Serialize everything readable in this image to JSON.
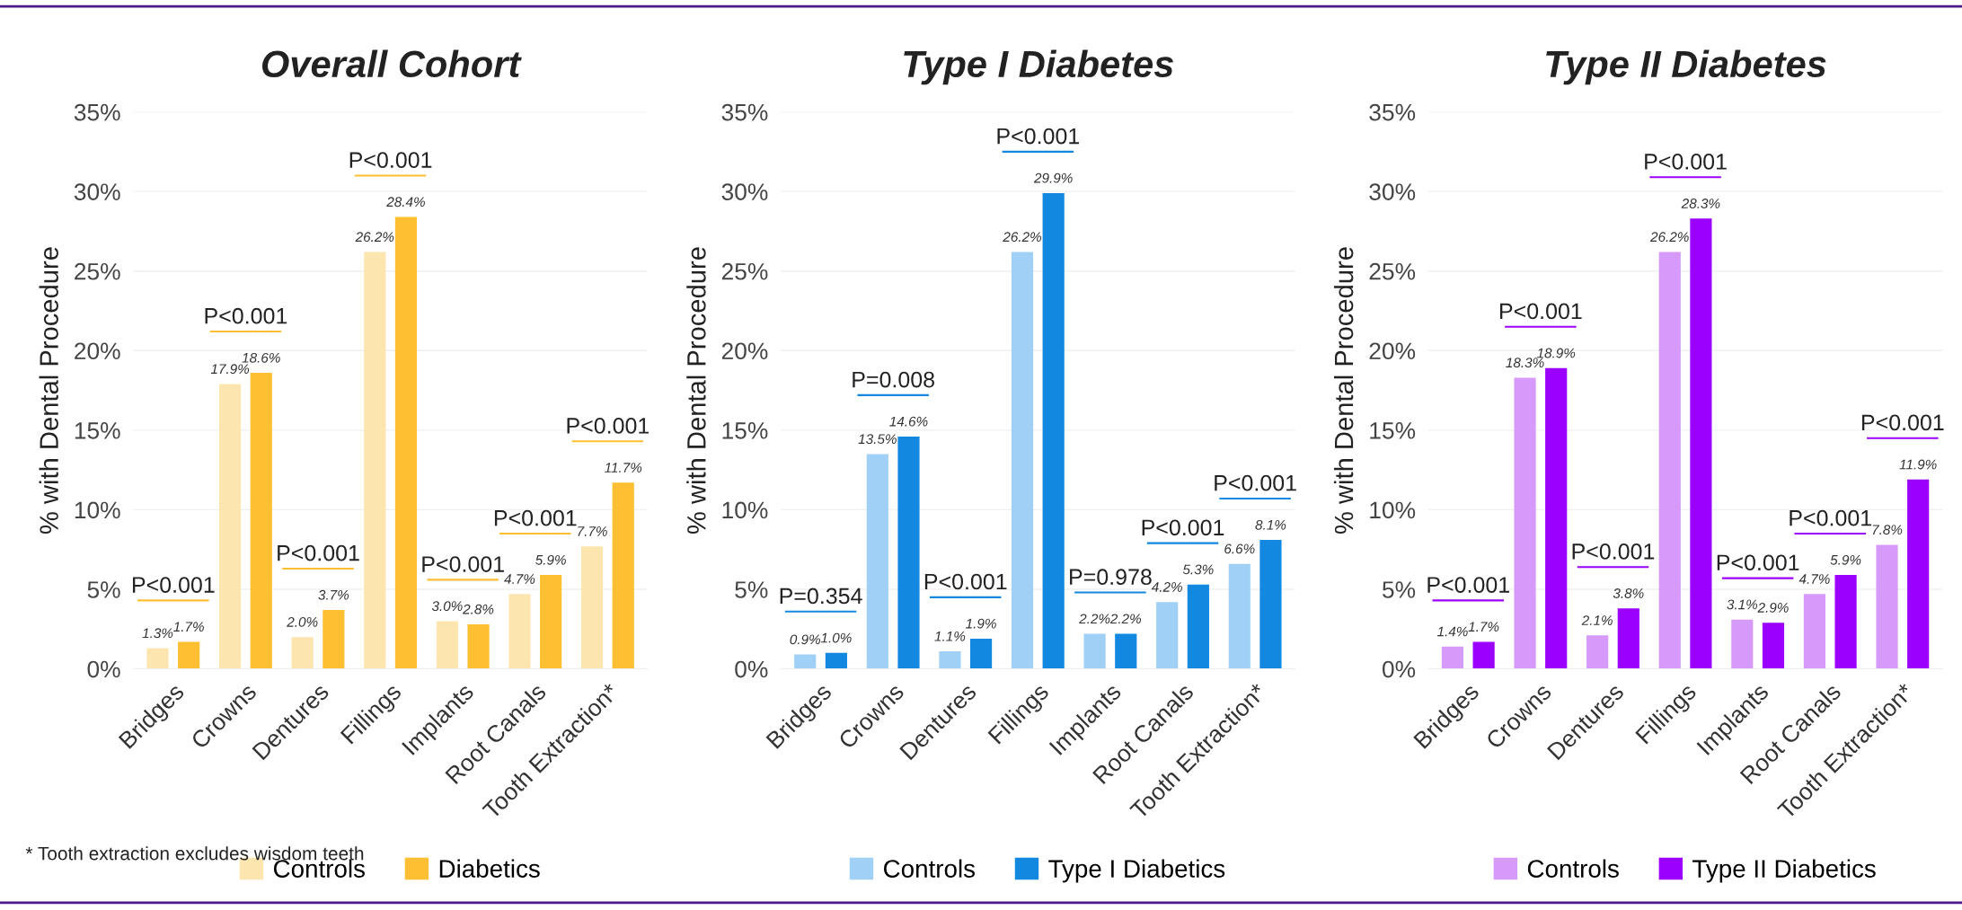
{
  "chart_data": [
    {
      "type": "bar",
      "title": "Overall Cohort",
      "ylabel": "% with Dental Procedure",
      "categories": [
        "Bridges",
        "Crowns",
        "Dentures",
        "Fillings",
        "Implants",
        "Root Canals",
        "Tooth Extraction*"
      ],
      "series": [
        {
          "name": "Controls",
          "color": "#fde5b0",
          "values": [
            1.3,
            17.9,
            2.0,
            26.2,
            3.0,
            4.7,
            7.7
          ],
          "value_labels": [
            "1.3%",
            "17.9%",
            "2.0%",
            "26.2%",
            "3.0%",
            "4.7%",
            "7.7%"
          ]
        },
        {
          "name": "Diabetics",
          "color": "#ffbf33",
          "values": [
            1.7,
            18.6,
            3.7,
            28.4,
            2.8,
            5.9,
            11.7
          ],
          "value_labels": [
            "1.7%",
            "18.6%",
            "3.7%",
            "28.4%",
            "2.8%",
            "5.9%",
            "11.7%"
          ]
        }
      ],
      "ylim": [
        0,
        35
      ],
      "yticks": [
        {
          "value": 0,
          "label": "0%"
        },
        {
          "value": 5,
          "label": "5%"
        },
        {
          "value": 10,
          "label": "10%"
        },
        {
          "value": 15,
          "label": "15%"
        },
        {
          "value": 20,
          "label": "20%"
        },
        {
          "value": 25,
          "label": "25%"
        },
        {
          "value": 30,
          "label": "30%"
        },
        {
          "value": 35,
          "label": "35%"
        }
      ],
      "grid": "y",
      "legend": "bottom",
      "annotations": [
        "P<0.001",
        "P<0.001",
        "P<0.001",
        "P<0.001",
        "P<0.001",
        "P<0.001",
        "P<0.001",
        "* Tooth extraction excludes wisdom teeth"
      ]
    },
    {
      "type": "bar",
      "title": "Type I Diabetes",
      "ylabel": "% with Dental Procedure",
      "categories": [
        "Bridges",
        "Crowns",
        "Dentures",
        "Fillings",
        "Implants",
        "Root Canals",
        "Tooth Extraction*"
      ],
      "series": [
        {
          "name": "Controls",
          "color": "#a0d0f5",
          "values": [
            0.9,
            13.5,
            1.1,
            26.2,
            2.2,
            4.2,
            6.6
          ],
          "value_labels": [
            "0.9%",
            "13.5%",
            "1.1%",
            "26.2%",
            "2.2%",
            "4.2%",
            "6.6%"
          ]
        },
        {
          "name": "Type I Diabetics",
          "color": "#1288e0",
          "values": [
            1.0,
            14.6,
            1.9,
            29.9,
            2.2,
            5.3,
            8.1
          ],
          "value_labels": [
            "1.0%",
            "14.6%",
            "1.9%",
            "29.9%",
            "2.2%",
            "5.3%",
            "8.1%"
          ]
        }
      ],
      "ylim": [
        0,
        35
      ],
      "yticks": [
        {
          "value": 0,
          "label": "0%"
        },
        {
          "value": 5,
          "label": "5%"
        },
        {
          "value": 10,
          "label": "10%"
        },
        {
          "value": 15,
          "label": "15%"
        },
        {
          "value": 20,
          "label": "20%"
        },
        {
          "value": 25,
          "label": "25%"
        },
        {
          "value": 30,
          "label": "30%"
        },
        {
          "value": 35,
          "label": "35%"
        }
      ],
      "grid": "y",
      "legend": "bottom",
      "annotations": [
        "P=0.354",
        "P=0.008",
        "P<0.001",
        "P<0.001",
        "P=0.978",
        "P<0.001",
        "P<0.001"
      ]
    },
    {
      "type": "bar",
      "title": "Type II Diabetes",
      "ylabel": "% with Dental Procedure",
      "categories": [
        "Bridges",
        "Crowns",
        "Dentures",
        "Fillings",
        "Implants",
        "Root Canals",
        "Tooth Extraction*"
      ],
      "series": [
        {
          "name": "Controls",
          "color": "#d69bfa",
          "values": [
            1.4,
            18.3,
            2.1,
            26.2,
            3.1,
            4.7,
            7.8
          ],
          "value_labels": [
            "1.4%",
            "18.3%",
            "2.1%",
            "26.2%",
            "3.1%",
            "4.7%",
            "7.8%"
          ]
        },
        {
          "name": "Type II Diabetics",
          "color": "#9b00ff",
          "values": [
            1.7,
            18.9,
            3.8,
            28.3,
            2.9,
            5.9,
            11.9
          ],
          "value_labels": [
            "1.7%",
            "18.9%",
            "3.8%",
            "28.3%",
            "2.9%",
            "5.9%",
            "11.9%"
          ]
        }
      ],
      "ylim": [
        0,
        35
      ],
      "yticks": [
        {
          "value": 0,
          "label": "0%"
        },
        {
          "value": 5,
          "label": "5%"
        },
        {
          "value": 10,
          "label": "10%"
        },
        {
          "value": 15,
          "label": "15%"
        },
        {
          "value": 20,
          "label": "20%"
        },
        {
          "value": 25,
          "label": "25%"
        },
        {
          "value": 30,
          "label": "30%"
        },
        {
          "value": 35,
          "label": "35%"
        }
      ],
      "grid": "y",
      "legend": "bottom",
      "annotations": [
        "P<0.001",
        "P<0.001",
        "P<0.001",
        "P<0.001",
        "P<0.001",
        "P<0.001",
        "P<0.001"
      ]
    }
  ]
}
